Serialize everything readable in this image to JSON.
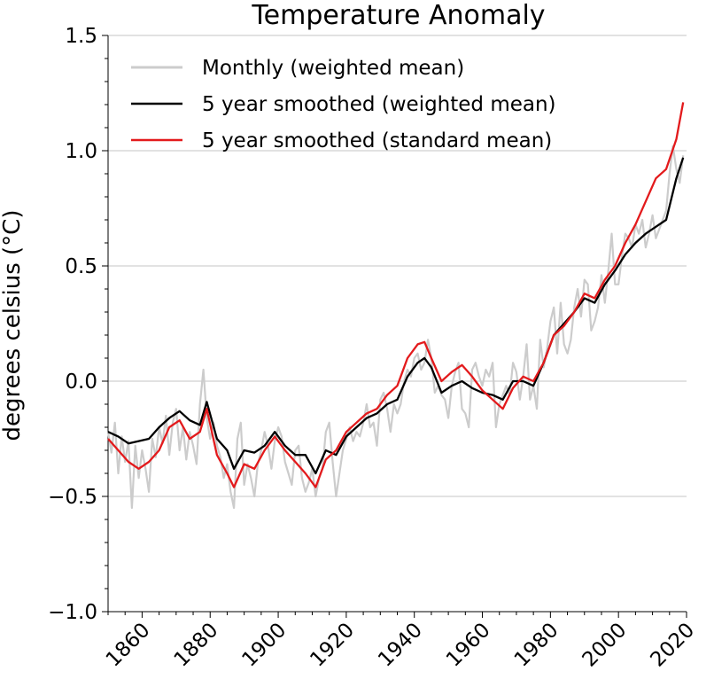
{
  "chart_data": {
    "type": "line",
    "title": "Temperature Anomaly",
    "xlabel": "",
    "ylabel": "degrees celsius (°C)",
    "xlim": [
      1850,
      2020
    ],
    "ylim": [
      -1.0,
      1.5
    ],
    "grid": "horizontal",
    "legend_position": "top-left",
    "x_ticks": [
      {
        "value": 1860,
        "label": "1860"
      },
      {
        "value": 1880,
        "label": "1880"
      },
      {
        "value": 1900,
        "label": "1900"
      },
      {
        "value": 1920,
        "label": "1920"
      },
      {
        "value": 1940,
        "label": "1940"
      },
      {
        "value": 1960,
        "label": "1960"
      },
      {
        "value": 1980,
        "label": "1980"
      },
      {
        "value": 2000,
        "label": "2000"
      },
      {
        "value": 2020,
        "label": "2020"
      }
    ],
    "y_ticks": [
      {
        "value": -1.0,
        "label": "−1.0"
      },
      {
        "value": -0.5,
        "label": "−0.5"
      },
      {
        "value": 0.0,
        "label": "0.0"
      },
      {
        "value": 0.5,
        "label": "0.5"
      },
      {
        "value": 1.0,
        "label": "1.0"
      },
      {
        "value": 1.5,
        "label": "1.5"
      }
    ],
    "series": [
      {
        "name": "Monthly (weighted mean)",
        "color": "#cccccc",
        "x": [
          1850,
          1851,
          1852,
          1853,
          1854,
          1855,
          1856,
          1857,
          1858,
          1859,
          1860,
          1861,
          1862,
          1863,
          1864,
          1865,
          1866,
          1867,
          1868,
          1869,
          1870,
          1871,
          1872,
          1873,
          1874,
          1875,
          1876,
          1877,
          1878,
          1879,
          1880,
          1881,
          1882,
          1883,
          1884,
          1885,
          1886,
          1887,
          1888,
          1889,
          1890,
          1891,
          1892,
          1893,
          1894,
          1895,
          1896,
          1897,
          1898,
          1899,
          1900,
          1901,
          1902,
          1903,
          1904,
          1905,
          1906,
          1907,
          1908,
          1909,
          1910,
          1911,
          1912,
          1913,
          1914,
          1915,
          1916,
          1917,
          1918,
          1919,
          1920,
          1921,
          1922,
          1923,
          1924,
          1925,
          1926,
          1927,
          1928,
          1929,
          1930,
          1931,
          1932,
          1933,
          1934,
          1935,
          1936,
          1937,
          1938,
          1939,
          1940,
          1941,
          1942,
          1943,
          1944,
          1945,
          1946,
          1947,
          1948,
          1949,
          1950,
          1951,
          1952,
          1953,
          1954,
          1955,
          1956,
          1957,
          1958,
          1959,
          1960,
          1961,
          1962,
          1963,
          1964,
          1965,
          1966,
          1967,
          1968,
          1969,
          1970,
          1971,
          1972,
          1973,
          1974,
          1975,
          1976,
          1977,
          1978,
          1979,
          1980,
          1981,
          1982,
          1983,
          1984,
          1985,
          1986,
          1987,
          1988,
          1989,
          1990,
          1991,
          1992,
          1993,
          1994,
          1995,
          1996,
          1997,
          1998,
          1999,
          2000,
          2001,
          2002,
          2003,
          2004,
          2005,
          2006,
          2007,
          2008,
          2009,
          2010,
          2011,
          2012,
          2013,
          2014,
          2015,
          2016,
          2017,
          2018,
          2019
        ],
        "values": [
          -0.22,
          -0.31,
          -0.18,
          -0.4,
          -0.24,
          -0.35,
          -0.26,
          -0.55,
          -0.28,
          -0.42,
          -0.3,
          -0.38,
          -0.48,
          -0.25,
          -0.33,
          -0.2,
          -0.27,
          -0.15,
          -0.32,
          -0.18,
          -0.12,
          -0.3,
          -0.2,
          -0.34,
          -0.22,
          -0.28,
          -0.36,
          -0.1,
          0.05,
          -0.16,
          -0.25,
          -0.18,
          -0.28,
          -0.33,
          -0.42,
          -0.36,
          -0.48,
          -0.55,
          -0.25,
          -0.18,
          -0.45,
          -0.36,
          -0.42,
          -0.5,
          -0.36,
          -0.3,
          -0.22,
          -0.28,
          -0.38,
          -0.26,
          -0.2,
          -0.24,
          -0.35,
          -0.4,
          -0.45,
          -0.3,
          -0.28,
          -0.42,
          -0.48,
          -0.44,
          -0.38,
          -0.5,
          -0.42,
          -0.38,
          -0.22,
          -0.18,
          -0.35,
          -0.5,
          -0.4,
          -0.3,
          -0.25,
          -0.2,
          -0.26,
          -0.22,
          -0.24,
          -0.18,
          -0.1,
          -0.2,
          -0.18,
          -0.28,
          -0.08,
          -0.05,
          -0.12,
          -0.22,
          -0.1,
          -0.14,
          -0.1,
          0.0,
          0.05,
          0.02,
          0.1,
          0.12,
          0.05,
          0.08,
          0.18,
          0.1,
          -0.05,
          -0.02,
          -0.06,
          -0.08,
          -0.16,
          -0.02,
          0.04,
          0.08,
          -0.12,
          -0.14,
          -0.2,
          0.05,
          0.08,
          0.02,
          -0.02,
          0.05,
          0.02,
          0.08,
          -0.2,
          -0.1,
          -0.06,
          -0.02,
          -0.06,
          0.08,
          0.04,
          -0.08,
          0.02,
          0.16,
          -0.08,
          -0.02,
          -0.12,
          0.18,
          0.06,
          0.14,
          0.26,
          0.32,
          0.12,
          0.34,
          0.16,
          0.12,
          0.18,
          0.32,
          0.4,
          0.28,
          0.44,
          0.42,
          0.22,
          0.26,
          0.32,
          0.46,
          0.34,
          0.48,
          0.64,
          0.42,
          0.42,
          0.54,
          0.64,
          0.62,
          0.58,
          0.68,
          0.64,
          0.7,
          0.58,
          0.64,
          0.72,
          0.62,
          0.66,
          0.7,
          0.74,
          0.9,
          1.02,
          0.92,
          0.86,
          0.98
        ]
      },
      {
        "name": "5 year smoothed (weighted mean)",
        "color": "#000000",
        "x": [
          1850,
          1853,
          1856,
          1859,
          1862,
          1865,
          1868,
          1871,
          1874,
          1877,
          1879,
          1882,
          1885,
          1887,
          1890,
          1893,
          1896,
          1899,
          1902,
          1905,
          1908,
          1911,
          1914,
          1917,
          1920,
          1923,
          1926,
          1929,
          1932,
          1935,
          1938,
          1941,
          1943,
          1945,
          1948,
          1951,
          1954,
          1957,
          1960,
          1963,
          1966,
          1969,
          1972,
          1975,
          1978,
          1981,
          1984,
          1987,
          1990,
          1993,
          1996,
          1999,
          2002,
          2005,
          2008,
          2011,
          2014,
          2017,
          2019
        ],
        "values": [
          -0.22,
          -0.24,
          -0.27,
          -0.26,
          -0.25,
          -0.2,
          -0.16,
          -0.13,
          -0.17,
          -0.19,
          -0.09,
          -0.25,
          -0.3,
          -0.38,
          -0.3,
          -0.31,
          -0.28,
          -0.22,
          -0.28,
          -0.32,
          -0.32,
          -0.4,
          -0.3,
          -0.32,
          -0.24,
          -0.2,
          -0.16,
          -0.14,
          -0.1,
          -0.08,
          0.02,
          0.08,
          0.1,
          0.06,
          -0.05,
          -0.02,
          0.0,
          -0.03,
          -0.05,
          -0.06,
          -0.08,
          0.0,
          0.0,
          -0.02,
          0.08,
          0.2,
          0.25,
          0.3,
          0.36,
          0.34,
          0.42,
          0.48,
          0.55,
          0.6,
          0.64,
          0.67,
          0.7,
          0.88,
          0.97
        ]
      },
      {
        "name": "5 year smoothed (standard mean)",
        "color": "#e31a1c",
        "x": [
          1850,
          1853,
          1856,
          1859,
          1862,
          1865,
          1868,
          1871,
          1874,
          1877,
          1879,
          1882,
          1885,
          1887,
          1890,
          1893,
          1896,
          1899,
          1902,
          1905,
          1908,
          1911,
          1914,
          1917,
          1920,
          1923,
          1926,
          1929,
          1932,
          1935,
          1938,
          1941,
          1943,
          1945,
          1948,
          1951,
          1954,
          1957,
          1960,
          1963,
          1966,
          1969,
          1972,
          1975,
          1978,
          1981,
          1984,
          1987,
          1990,
          1993,
          1996,
          1999,
          2002,
          2005,
          2008,
          2011,
          2014,
          2017,
          2019
        ],
        "values": [
          -0.25,
          -0.3,
          -0.35,
          -0.38,
          -0.35,
          -0.3,
          -0.2,
          -0.17,
          -0.25,
          -0.22,
          -0.12,
          -0.32,
          -0.4,
          -0.46,
          -0.36,
          -0.38,
          -0.3,
          -0.24,
          -0.3,
          -0.35,
          -0.4,
          -0.46,
          -0.34,
          -0.3,
          -0.22,
          -0.18,
          -0.14,
          -0.12,
          -0.06,
          -0.02,
          0.1,
          0.16,
          0.17,
          0.1,
          0.0,
          0.04,
          0.07,
          0.02,
          -0.04,
          -0.08,
          -0.12,
          -0.03,
          0.02,
          0.0,
          0.08,
          0.2,
          0.24,
          0.3,
          0.38,
          0.36,
          0.44,
          0.5,
          0.6,
          0.68,
          0.78,
          0.88,
          0.92,
          1.05,
          1.21
        ]
      }
    ]
  }
}
